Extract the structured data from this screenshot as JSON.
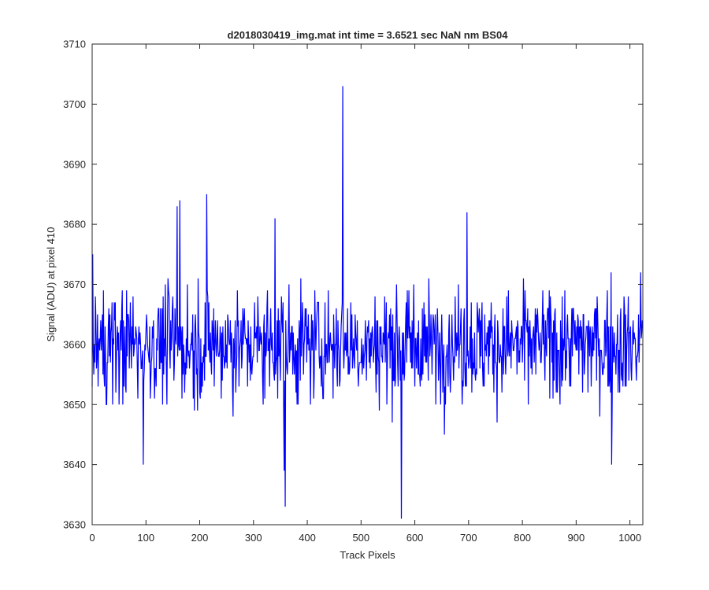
{
  "chart_data": {
    "type": "line",
    "title": "d2018030419_img.mat int time = 3.6521 sec  NaN nm BS04",
    "xlabel": "Track Pixels",
    "ylabel": "Signal (ADU) at pixel 410",
    "xlim": [
      0,
      1024
    ],
    "ylim": [
      3630,
      3710
    ],
    "xticks": [
      0,
      100,
      200,
      300,
      400,
      500,
      600,
      700,
      800,
      900,
      1000
    ],
    "yticks": [
      3630,
      3640,
      3650,
      3660,
      3670,
      3680,
      3690,
      3700,
      3710
    ],
    "grid": false,
    "line_color": "#0000ff",
    "series_length": 1024,
    "series_mean": 3660,
    "series_min": 3631,
    "series_max": 3703,
    "notable_points": [
      {
        "x": 1,
        "y": 3675
      },
      {
        "x": 95,
        "y": 3640
      },
      {
        "x": 158,
        "y": 3683
      },
      {
        "x": 163,
        "y": 3684
      },
      {
        "x": 213,
        "y": 3685
      },
      {
        "x": 340,
        "y": 3681
      },
      {
        "x": 357,
        "y": 3639
      },
      {
        "x": 359,
        "y": 3633
      },
      {
        "x": 466,
        "y": 3703
      },
      {
        "x": 575,
        "y": 3631
      },
      {
        "x": 697,
        "y": 3682
      },
      {
        "x": 966,
        "y": 3640
      },
      {
        "x": 1020,
        "y": 3672
      }
    ]
  }
}
